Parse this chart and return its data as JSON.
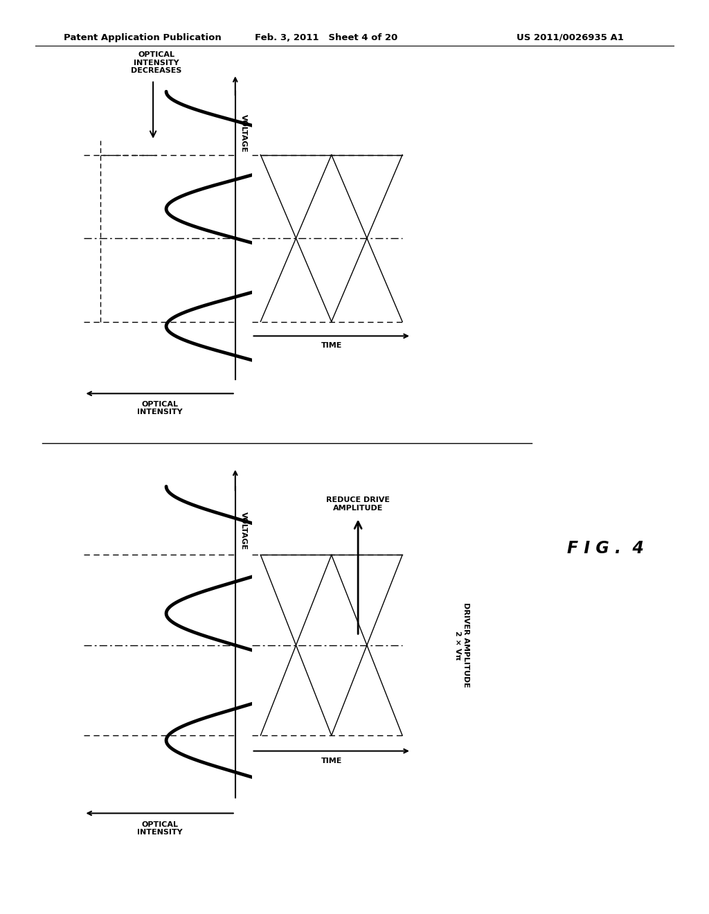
{
  "bg_color": "#ffffff",
  "header_left": "Patent Application Publication",
  "header_mid": "Feb. 3, 2011   Sheet 4 of 20",
  "header_right": "US 2011/0026935 A1",
  "fig_label": "F I G .  4"
}
